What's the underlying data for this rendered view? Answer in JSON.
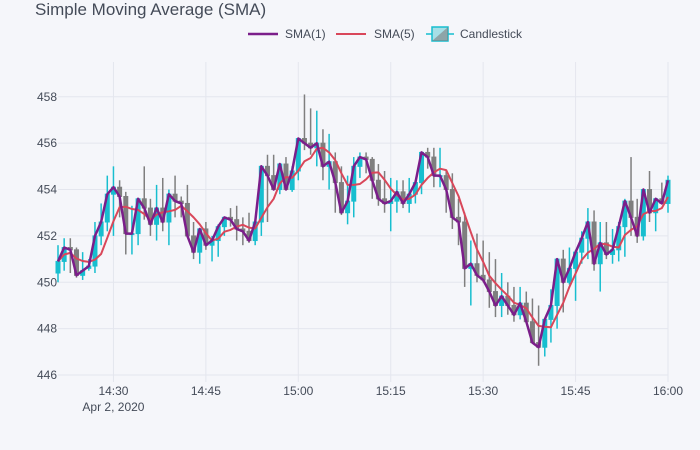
{
  "chart_data": {
    "type": "candlestick",
    "title": "Simple Moving Average (SMA)",
    "xlabel": "",
    "ylabel": "",
    "xlim": [
      "14:21",
      "16:00"
    ],
    "ylim": [
      445.7,
      459.5
    ],
    "grid": true,
    "legend_position": "top",
    "x_ticks": [
      {
        "value": "14:30",
        "label": "14:30",
        "sublabel": "Apr 2, 2020"
      },
      {
        "value": "14:45",
        "label": "14:45"
      },
      {
        "value": "15:00",
        "label": "15:00"
      },
      {
        "value": "15:15",
        "label": "15:15"
      },
      {
        "value": "15:30",
        "label": "15:30"
      },
      {
        "value": "15:45",
        "label": "15:45"
      },
      {
        "value": "16:00",
        "label": "16:00"
      }
    ],
    "y_ticks": [
      446,
      448,
      450,
      452,
      454,
      456,
      458
    ],
    "candlestick": {
      "name": "Candlestick",
      "increasing_color": "#17becf",
      "decreasing_color": "#7f7f7f",
      "time": [
        "14:21",
        "14:22",
        "14:23",
        "14:24",
        "14:25",
        "14:26",
        "14:27",
        "14:28",
        "14:29",
        "14:30",
        "14:31",
        "14:32",
        "14:33",
        "14:34",
        "14:35",
        "14:36",
        "14:37",
        "14:38",
        "14:39",
        "14:40",
        "14:41",
        "14:42",
        "14:43",
        "14:44",
        "14:45",
        "14:46",
        "14:47",
        "14:48",
        "14:49",
        "14:50",
        "14:51",
        "14:52",
        "14:53",
        "14:54",
        "14:55",
        "14:56",
        "14:57",
        "14:58",
        "14:59",
        "15:00",
        "15:01",
        "15:02",
        "15:03",
        "15:04",
        "15:05",
        "15:06",
        "15:07",
        "15:08",
        "15:09",
        "15:10",
        "15:11",
        "15:12",
        "15:13",
        "15:14",
        "15:15",
        "15:16",
        "15:17",
        "15:18",
        "15:19",
        "15:20",
        "15:21",
        "15:22",
        "15:23",
        "15:24",
        "15:25",
        "15:26",
        "15:27",
        "15:28",
        "15:29",
        "15:30",
        "15:31",
        "15:32",
        "15:33",
        "15:34",
        "15:35",
        "15:36",
        "15:37",
        "15:38",
        "15:39",
        "15:40",
        "15:41",
        "15:42",
        "15:43",
        "15:44",
        "15:45",
        "15:46",
        "15:47",
        "15:48",
        "15:49",
        "15:50",
        "15:51",
        "15:52",
        "15:53",
        "15:54",
        "15:55",
        "15:56",
        "15:57",
        "15:58",
        "15:59",
        "16:00"
      ],
      "open": [
        450.4,
        450.9,
        451.5,
        451.4,
        450.3,
        450.6,
        450.7,
        452.0,
        452.6,
        453.8,
        454.1,
        453.7,
        452.1,
        452.1,
        453.6,
        453.2,
        452.5,
        453.2,
        452.6,
        453.8,
        453.5,
        453.4,
        452.0,
        451.3,
        452.3,
        451.6,
        451.8,
        452.4,
        452.8,
        452.7,
        452.3,
        452.2,
        451.8,
        452.6,
        455.0,
        454.6,
        454.0,
        455.1,
        454.0,
        454.8,
        456.2,
        456.0,
        455.8,
        456.0,
        455.0,
        455.2,
        454.3,
        453.0,
        453.5,
        455.0,
        455.4,
        455.3,
        454.4,
        453.6,
        453.4,
        453.5,
        453.9,
        453.4,
        453.8,
        454.3,
        455.6,
        455.4,
        454.6,
        454.6,
        454.0,
        452.8,
        452.6,
        450.6,
        450.8,
        450.3,
        450.1,
        449.6,
        449.0,
        449.4,
        449.0,
        448.6,
        449.1,
        448.3,
        447.4,
        447.2,
        448.4,
        449.0,
        451.0,
        450.0,
        450.6,
        451.3,
        451.9,
        452.6,
        450.8,
        451.7,
        451.2,
        451.4,
        452.4,
        453.5,
        452.8,
        452.0,
        454.0,
        453.0,
        453.6,
        453.4
      ],
      "high": [
        451.6,
        451.9,
        451.9,
        451.5,
        451.3,
        451.0,
        452.6,
        453.4,
        454.6,
        455.0,
        454.4,
        453.9,
        453.3,
        453.4,
        455.0,
        453.6,
        454.2,
        454.5,
        454.0,
        454.6,
        453.7,
        454.2,
        452.6,
        452.2,
        452.6,
        452.0,
        452.5,
        452.8,
        453.2,
        453.3,
        452.8,
        453.0,
        452.4,
        453.8,
        455.5,
        455.5,
        455.0,
        455.4,
        455.0,
        455.8,
        458.1,
        457.5,
        457.4,
        456.6,
        456.4,
        455.6,
        455.0,
        454.6,
        455.4,
        455.6,
        455.6,
        455.4,
        455.1,
        454.8,
        454.5,
        454.4,
        454.4,
        454.5,
        454.4,
        454.6,
        455.8,
        455.8,
        455.8,
        454.8,
        454.7,
        453.6,
        453.0,
        451.8,
        452.1,
        451.8,
        451.3,
        451.0,
        450.4,
        450.0,
        449.8,
        449.8,
        449.6,
        449.3,
        449.0,
        448.4,
        449.7,
        451.0,
        451.4,
        451.5,
        451.4,
        452.2,
        453.2,
        453.1,
        452.6,
        452.6,
        452.3,
        452.6,
        453.6,
        455.4,
        453.6,
        453.3,
        454.8,
        453.6,
        454.3,
        454.6
      ],
      "low": [
        450.0,
        450.5,
        450.4,
        450.2,
        450.1,
        450.5,
        450.4,
        451.6,
        452.2,
        452.0,
        452.8,
        451.2,
        451.2,
        451.6,
        452.7,
        452.0,
        451.8,
        452.2,
        451.6,
        452.8,
        452.8,
        452.6,
        451.0,
        450.8,
        451.4,
        450.9,
        451.1,
        452.0,
        452.4,
        451.8,
        451.6,
        451.7,
        451.6,
        452.0,
        452.6,
        454.0,
        453.8,
        454.2,
        453.9,
        454.4,
        455.7,
        455.5,
        455.0,
        454.4,
        454.0,
        453.0,
        452.9,
        452.5,
        452.8,
        454.5,
        454.7,
        453.6,
        453.3,
        453.0,
        452.2,
        453.0,
        453.2,
        453.0,
        453.4,
        453.8,
        454.9,
        454.1,
        454.1,
        453.0,
        452.3,
        451.6,
        449.8,
        449.0,
        450.0,
        450.0,
        448.9,
        448.5,
        448.5,
        448.6,
        448.3,
        448.4,
        448.4,
        447.6,
        446.4,
        446.8,
        447.4,
        448.0,
        448.7,
        449.9,
        449.2,
        450.8,
        451.0,
        450.5,
        449.6,
        451.0,
        450.8,
        450.9,
        451.1,
        452.0,
        451.7,
        451.8,
        452.6,
        452.2,
        453.4,
        453.0
      ],
      "close": [
        450.9,
        451.5,
        451.4,
        450.3,
        450.5,
        450.7,
        452.0,
        452.6,
        453.8,
        454.1,
        453.7,
        452.1,
        452.1,
        453.6,
        453.2,
        452.5,
        453.2,
        452.6,
        453.8,
        453.5,
        453.4,
        452.0,
        451.3,
        452.3,
        451.6,
        451.8,
        452.4,
        452.8,
        452.7,
        452.3,
        452.2,
        451.8,
        452.6,
        455.0,
        454.6,
        454.0,
        455.1,
        454.0,
        454.8,
        456.2,
        456.0,
        455.8,
        456.0,
        455.0,
        455.2,
        454.3,
        453.0,
        453.5,
        455.0,
        455.4,
        455.3,
        454.4,
        453.6,
        453.4,
        453.5,
        453.9,
        453.4,
        453.8,
        454.3,
        455.6,
        455.4,
        454.6,
        454.6,
        454.0,
        452.8,
        452.6,
        450.6,
        450.8,
        450.3,
        450.1,
        449.6,
        449.0,
        449.4,
        449.0,
        448.6,
        449.1,
        448.3,
        447.4,
        447.2,
        448.4,
        449.0,
        451.0,
        450.0,
        450.6,
        451.3,
        451.9,
        452.6,
        450.8,
        451.7,
        451.2,
        451.4,
        452.4,
        453.5,
        452.8,
        452.0,
        454.0,
        453.0,
        453.6,
        453.4,
        454.4
      ]
    },
    "series": [
      {
        "name": "SMA(1)",
        "color": "#7b1e8a",
        "source": "close",
        "window": 1
      },
      {
        "name": "SMA(5)",
        "color": "#d9475a",
        "source": "close",
        "window": 5
      }
    ]
  }
}
